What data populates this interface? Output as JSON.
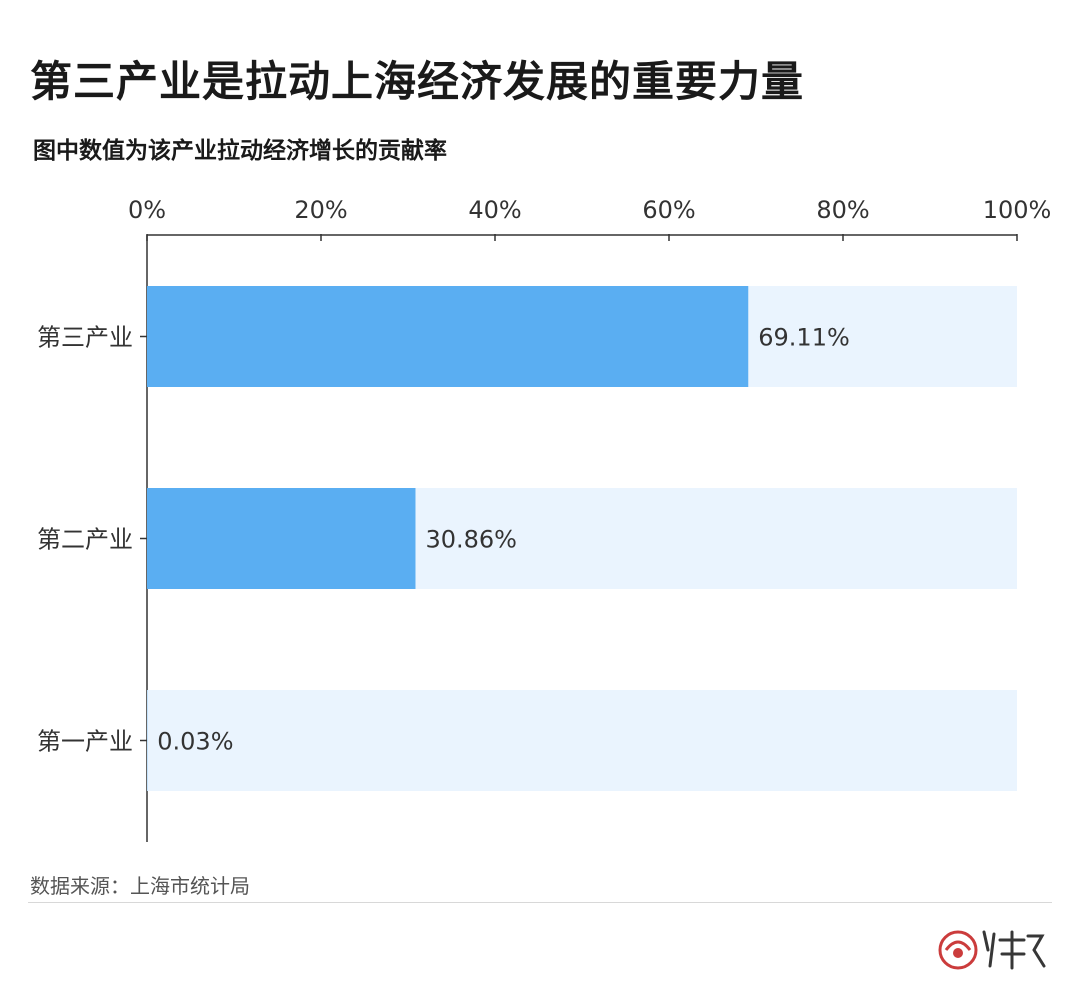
{
  "header": {
    "title": "第三产业是拉动上海经济发展的重要力量",
    "subtitle": "图中数值为该产业拉动经济增长的贡献率"
  },
  "footer": {
    "source": "数据来源：上海市统计局"
  },
  "colors": {
    "bar": "#5aaef2",
    "bar_track": "#eaf4fe",
    "axis": "#333333"
  },
  "chart_data": {
    "type": "bar",
    "orientation": "horizontal",
    "title": "第三产业是拉动上海经济发展的重要力量",
    "subtitle": "图中数值为该产业拉动经济增长的贡献率",
    "categories": [
      "第三产业",
      "第二产业",
      "第一产业"
    ],
    "values": [
      69.11,
      30.86,
      0.03
    ],
    "value_labels": [
      "69.11%",
      "30.86%",
      "0.03%"
    ],
    "xlim": [
      0,
      100
    ],
    "x_ticks": [
      0,
      20,
      40,
      60,
      80,
      100
    ],
    "x_tick_labels": [
      "0%",
      "20%",
      "40%",
      "60%",
      "80%",
      "100%"
    ],
    "x_axis_position": "top",
    "grid": false,
    "legend": "none"
  }
}
